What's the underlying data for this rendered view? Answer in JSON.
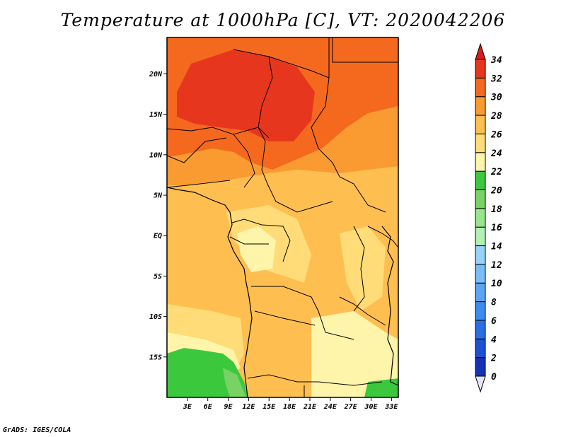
{
  "title": "Temperature at 1000hPa [C], VT: 2020042206",
  "credit": "GrADS: IGES/COLA",
  "map": {
    "lon_range": [
      0,
      34
    ],
    "lat_range": [
      -20,
      24.5
    ],
    "lon_ticks": [
      {
        "value": 3,
        "label": "3E"
      },
      {
        "value": 6,
        "label": "6E"
      },
      {
        "value": 9,
        "label": "9E"
      },
      {
        "value": 12,
        "label": "12E"
      },
      {
        "value": 15,
        "label": "15E"
      },
      {
        "value": 18,
        "label": "18E"
      },
      {
        "value": 21,
        "label": "21E"
      },
      {
        "value": 24,
        "label": "24E"
      },
      {
        "value": 27,
        "label": "27E"
      },
      {
        "value": 30,
        "label": "30E"
      },
      {
        "value": 33,
        "label": "33E"
      }
    ],
    "lat_ticks": [
      {
        "value": 20,
        "label": "20N"
      },
      {
        "value": 15,
        "label": "15N"
      },
      {
        "value": 10,
        "label": "10N"
      },
      {
        "value": 5,
        "label": "5N"
      },
      {
        "value": 0,
        "label": "EQ"
      },
      {
        "value": -5,
        "label": "5S"
      },
      {
        "value": -10,
        "label": "10S"
      },
      {
        "value": -15,
        "label": "15S"
      }
    ]
  },
  "colorbar": {
    "levels": [
      {
        "label": "0",
        "color": "#0a0a78"
      },
      {
        "label": "2",
        "color": "#1432b4"
      },
      {
        "label": "4",
        "color": "#1e50d2"
      },
      {
        "label": "6",
        "color": "#2a6ee6"
      },
      {
        "label": "8",
        "color": "#3c8cf0"
      },
      {
        "label": "10",
        "color": "#5aa5f5"
      },
      {
        "label": "12",
        "color": "#78bdfa"
      },
      {
        "label": "14",
        "color": "#96d2fa"
      },
      {
        "label": "16",
        "color": "#b4f0b4"
      },
      {
        "label": "18",
        "color": "#96e68c"
      },
      {
        "label": "20",
        "color": "#78d264"
      },
      {
        "label": "22",
        "color": "#3cc83c"
      },
      {
        "label": "24",
        "color": "#fff5aa"
      },
      {
        "label": "26",
        "color": "#ffdc78"
      },
      {
        "label": "28",
        "color": "#ffbe50"
      },
      {
        "label": "30",
        "color": "#fa9b32"
      },
      {
        "label": "32",
        "color": "#f5691e"
      },
      {
        "label": "34",
        "color": "#e6371e"
      }
    ],
    "under_color": "#e6e6fa",
    "over_color": "#d21e1e"
  }
}
